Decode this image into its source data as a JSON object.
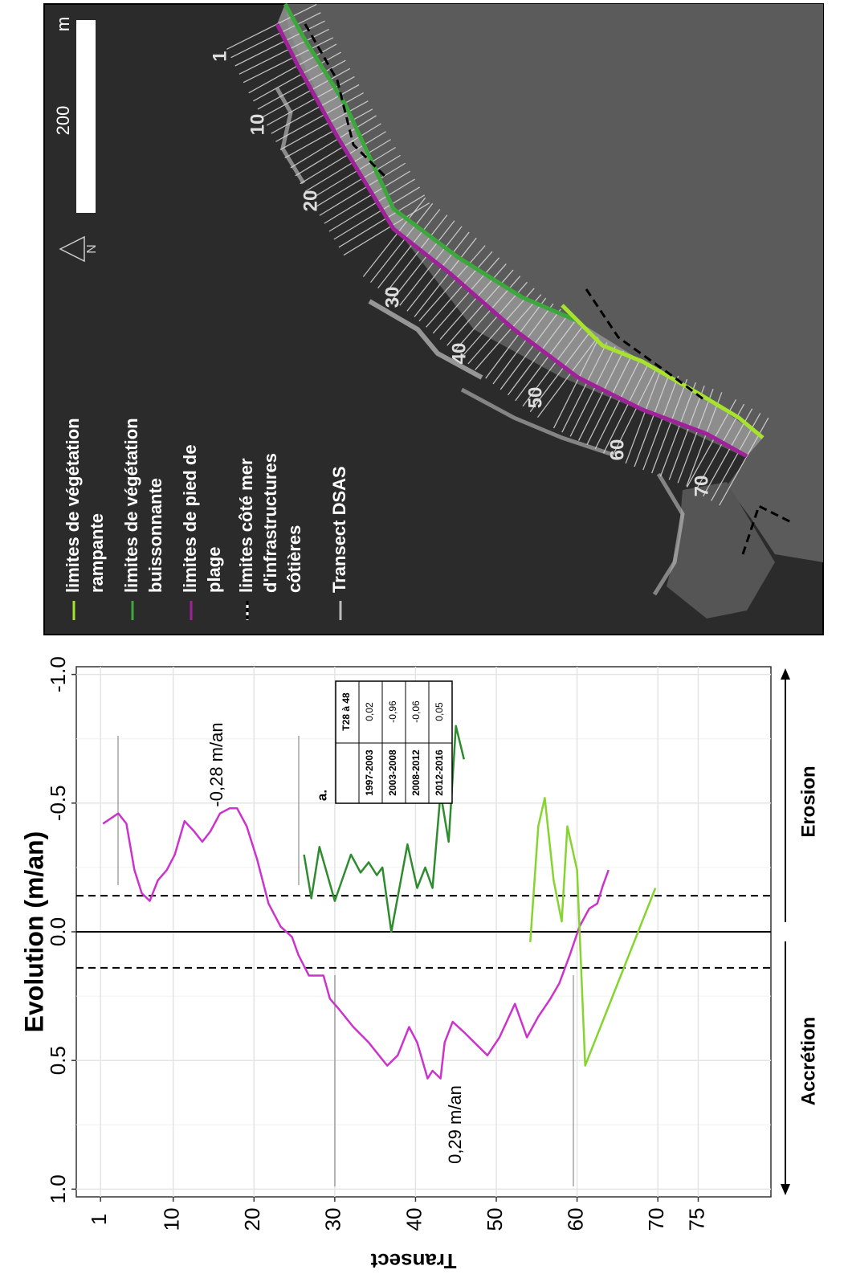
{
  "chart_data": {
    "type": "line",
    "ylabel": "Evolution (m/an)",
    "xlabel": "Transect",
    "xlim": [
      -2,
      84
    ],
    "xticks": [
      1,
      10,
      20,
      30,
      40,
      50,
      60,
      70,
      75
    ],
    "ylim": [
      -1.03,
      1.03
    ],
    "y_reversed": true,
    "yticks": [
      {
        "value": 1,
        "label": "1.0"
      },
      {
        "value": 0.5,
        "label": "0.5"
      },
      {
        "value": 0,
        "label": "0.0"
      },
      {
        "value": -0.5,
        "label": "-0.5"
      },
      {
        "value": -1,
        "label": "-1.0"
      }
    ],
    "yminor": [
      -0.75,
      -0.25,
      0.25,
      0.75
    ],
    "grid": true,
    "hlines": [
      {
        "value": -0.14,
        "dash": true
      },
      {
        "value": 0,
        "dash": false
      },
      {
        "value": 0.14,
        "dash": true
      }
    ],
    "series": [
      {
        "color": "#cc33cc",
        "x": [
          1.3,
          3.2,
          4.2,
          5.2,
          6.1,
          7.1,
          8.1,
          9.2,
          10.2,
          11.4,
          12.6,
          13.6,
          14.6,
          15.8,
          17,
          17.9,
          19.1,
          20.4,
          21.8,
          23.3,
          24.7,
          25.5,
          26.8,
          28.6,
          29.4,
          30.5,
          32.3,
          34.2,
          36.5,
          37.8,
          39.2,
          40.2,
          41.5,
          42.1,
          43.1,
          43.6,
          44.6,
          46,
          48.9,
          50.4,
          52.3,
          53.8,
          55.2,
          56.7,
          57.8,
          59.1,
          60.3,
          61.5,
          62.5,
          63.2,
          63.9
        ],
        "values": [
          -0.42,
          -0.46,
          -0.42,
          -0.24,
          -0.15,
          -0.12,
          -0.2,
          -0.24,
          -0.3,
          -0.43,
          -0.39,
          -0.35,
          -0.39,
          -0.46,
          -0.48,
          -0.48,
          -0.41,
          -0.28,
          -0.11,
          -0.02,
          0.02,
          0.09,
          0.17,
          0.17,
          0.26,
          0.3,
          0.37,
          0.43,
          0.52,
          0.48,
          0.37,
          0.43,
          0.57,
          0.54,
          0.57,
          0.43,
          0.35,
          0.39,
          0.48,
          0.41,
          0.28,
          0.41,
          0.33,
          0.26,
          0.2,
          0.09,
          -0.02,
          -0.09,
          -0.11,
          -0.18,
          -0.24
        ]
      },
      {
        "color": "#2e8b2e",
        "x": [
          26.2,
          27.1,
          28.1,
          30,
          32,
          33.2,
          34.2,
          35.2,
          35.9,
          37,
          39,
          40.2,
          41.2,
          42.1,
          43.1,
          44.1,
          45,
          46
        ],
        "values": [
          -0.3,
          -0.13,
          -0.33,
          -0.12,
          -0.3,
          -0.23,
          -0.27,
          -0.22,
          -0.25,
          0.0,
          -0.34,
          -0.17,
          -0.25,
          -0.17,
          -0.54,
          -0.35,
          -0.8,
          -0.67
        ]
      },
      {
        "color": "#86d42e",
        "x": [
          54.2,
          55.2,
          56,
          57.1,
          58.1,
          58.8,
          60,
          61,
          69.7
        ],
        "values": [
          0.04,
          -0.41,
          -0.52,
          -0.2,
          -0.04,
          -0.41,
          -0.24,
          0.52,
          -0.17
        ]
      }
    ],
    "annotations": [
      "-0,28 m/an",
      "0,29 m/an"
    ],
    "table": {
      "label": "a.",
      "column_header": "T28 à 48",
      "rows": [
        [
          "1997-2003",
          "0,02"
        ],
        [
          "2003-2008",
          "-0,96"
        ],
        [
          "2008-2012",
          "-0,06"
        ],
        [
          "2012-2016",
          "0,05"
        ]
      ]
    },
    "direction_labels": {
      "negative": "Erosion",
      "positive": "Accrétion"
    }
  },
  "map": {
    "legend": [
      {
        "lines": [
          "limites de végétation",
          "rampante"
        ],
        "color": "#a6e22e"
      },
      {
        "lines": [
          "limites de végétation",
          "buissonnante"
        ],
        "color": "#3ca83c"
      },
      {
        "lines": [
          "limites de pied de",
          "plage"
        ],
        "color": "#a0229a"
      },
      {
        "lines": [
          "limites côté mer",
          "d'infrastructures",
          "côtières"
        ],
        "color": "#000000"
      },
      {
        "lines": [
          "Transect DSAS"
        ],
        "color": "#bbbbbb"
      }
    ],
    "scale_label": "200",
    "scale_unit": "m",
    "north": "N",
    "transect_labels": [
      "1",
      "10",
      "20",
      "30",
      "40",
      "50",
      "60",
      "70"
    ]
  }
}
